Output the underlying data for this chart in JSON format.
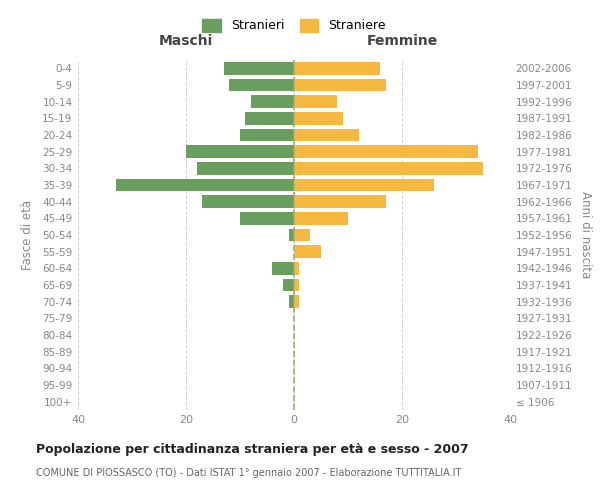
{
  "age_groups": [
    "100+",
    "95-99",
    "90-94",
    "85-89",
    "80-84",
    "75-79",
    "70-74",
    "65-69",
    "60-64",
    "55-59",
    "50-54",
    "45-49",
    "40-44",
    "35-39",
    "30-34",
    "25-29",
    "20-24",
    "15-19",
    "10-14",
    "5-9",
    "0-4"
  ],
  "birth_years": [
    "≤ 1906",
    "1907-1911",
    "1912-1916",
    "1917-1921",
    "1922-1926",
    "1927-1931",
    "1932-1936",
    "1937-1941",
    "1942-1946",
    "1947-1951",
    "1952-1956",
    "1957-1961",
    "1962-1966",
    "1967-1971",
    "1972-1976",
    "1977-1981",
    "1982-1986",
    "1987-1991",
    "1992-1996",
    "1997-2001",
    "2002-2006"
  ],
  "maschi": [
    0,
    0,
    0,
    0,
    0,
    0,
    1,
    2,
    4,
    0,
    1,
    10,
    17,
    33,
    18,
    20,
    10,
    9,
    8,
    12,
    13
  ],
  "femmine": [
    0,
    0,
    0,
    0,
    0,
    0,
    1,
    1,
    1,
    5,
    3,
    10,
    17,
    26,
    35,
    34,
    12,
    9,
    8,
    17,
    16
  ],
  "color_maschi": "#6a9e5e",
  "color_femmine": "#f5b942",
  "title": "Popolazione per cittadinanza straniera per età e sesso - 2007",
  "subtitle": "COMUNE DI PIOSSASCO (TO) - Dati ISTAT 1° gennaio 2007 - Elaborazione TUTTITALIA.IT",
  "xlabel_left": "Maschi",
  "xlabel_right": "Femmine",
  "ylabel_left": "Fasce di età",
  "ylabel_right": "Anni di nascita",
  "legend_maschi": "Stranieri",
  "legend_femmine": "Straniere",
  "xlim": 40,
  "background_color": "#ffffff",
  "grid_color": "#d0d0d0"
}
